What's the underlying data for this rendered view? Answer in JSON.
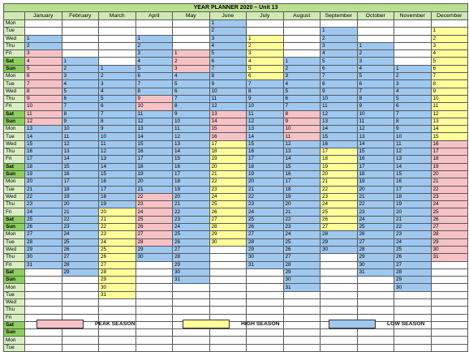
{
  "title": "YEAR PLANNER 2020 – Unit 13",
  "months": [
    "January",
    "February",
    "March",
    "April",
    "May",
    "June",
    "July",
    "August",
    "September",
    "October",
    "November",
    "December"
  ],
  "day_labels": [
    "Mon",
    "Tue",
    "Wed",
    "Thu",
    "Fri",
    "Sat",
    "Sun",
    "Mon",
    "Tue",
    "Wed",
    "Thu",
    "Fri",
    "Sat",
    "Sun",
    "Mon",
    "Tue",
    "Wed",
    "Thu",
    "Fri",
    "Sat",
    "Sun",
    "Mon",
    "Tue",
    "Wed",
    "Thu",
    "Fri",
    "Sat",
    "Sun",
    "Mon",
    "Tue",
    "Wed",
    "Thu",
    "Fri",
    "Sat",
    "Sun",
    "Mon",
    "Tue",
    "Wed",
    "Thu",
    "Fri",
    "Sat",
    "Sun",
    "Mon",
    "Tue"
  ],
  "weekend_days": [
    "Sat",
    "Sun"
  ],
  "month_start_offsets": [
    2,
    5,
    6,
    2,
    4,
    0,
    2,
    5,
    1,
    3,
    6,
    1
  ],
  "month_lengths": [
    31,
    29,
    31,
    30,
    31,
    30,
    31,
    31,
    30,
    31,
    30,
    31
  ],
  "colors": {
    "peak": "#f7c2c6",
    "high": "#ffff9a",
    "low": "#9fc8f0",
    "weekday_label": "#d9efc2",
    "weekend_label": "#8ccf5c",
    "header": "#cfe9b4",
    "title_bg": "#b9df8f"
  },
  "season_codes": [
    "LLPPPPPPPPPPLLLLLLLLLLLLLLLLLLL",
    "LLLLLLLLLLLLLLLLLLLLLLLLLLLLL",
    "LLLLLLLLLLLLLLLLLLLHHHHHHHHHHHH",
    "LLLLLLLLPPLLLLLLLLLLLPPPPPPPLLL",
    "PPPLLLLLLLLLLLLLLLLLLLLLLLLLLLL",
    "LLLLLLLLLLLLPPPPHHHHHHHHHHHHHH",
    "HHHHHHLLLLLLLLLLLLLLLLLLLLLLLLL",
    "LLLLLLLPPPPLLLLLLLLLLLLLLLLLLLL",
    "LLLLLLLLLLLLLLLLHHHHHHHHHHHLLL",
    "LLLLLLLLLLLLLLLLLLLLLLLLLLLLLLL",
    "LLLLLLLLLLLLLLLLLLLLLLLLLLLLLL",
    "HHHHHHHHHHHHHHHPPPPPPPPPPPPPPPP"
  ],
  "legend": [
    {
      "key": "peak",
      "label": "PEAK SEASON",
      "color": "#f7c2c6"
    },
    {
      "key": "high",
      "label": "HIGH SEASON",
      "color": "#ffff9a"
    },
    {
      "key": "low",
      "label": "LOW SEASON",
      "color": "#9fc8f0"
    }
  ]
}
